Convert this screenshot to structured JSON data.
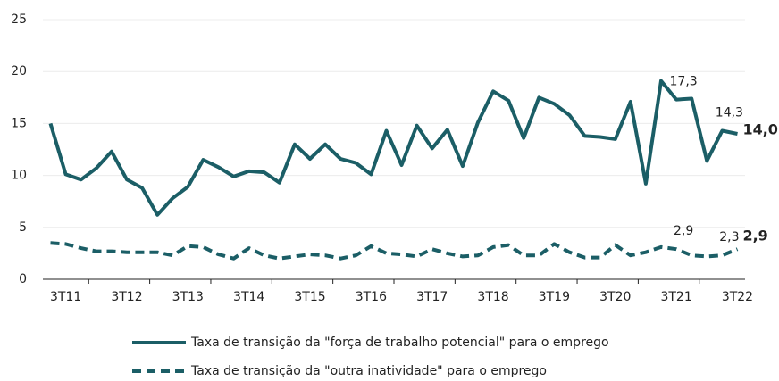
{
  "chart_data": {
    "type": "line",
    "categories": [
      null,
      "3T11",
      null,
      null,
      null,
      "3T12",
      null,
      null,
      null,
      "3T13",
      null,
      null,
      null,
      "3T14",
      null,
      null,
      null,
      "3T15",
      null,
      null,
      null,
      "3T16",
      null,
      null,
      null,
      "3T17",
      null,
      null,
      null,
      "3T18",
      null,
      null,
      null,
      "3T19",
      null,
      null,
      null,
      "3T20",
      null,
      null,
      null,
      "3T21",
      null,
      null,
      null,
      "3T22"
    ],
    "series": [
      {
        "name": "Taxa de transição da \"força de trabalho potencial\" para o emprego",
        "color": "#1b5e66",
        "dash": false,
        "values": [
          15.0,
          10.1,
          9.6,
          10.7,
          12.3,
          9.6,
          8.8,
          6.2,
          7.8,
          8.9,
          11.5,
          10.8,
          9.9,
          10.4,
          10.3,
          9.3,
          13.0,
          11.6,
          13.0,
          11.6,
          11.2,
          10.1,
          14.3,
          11.0,
          14.8,
          12.6,
          14.4,
          10.9,
          15.1,
          18.1,
          17.2,
          13.6,
          17.5,
          16.9,
          15.8,
          13.8,
          13.7,
          13.5,
          17.1,
          9.2,
          19.1,
          17.3,
          17.4,
          11.4,
          14.3,
          14.0
        ],
        "value_labels": [
          null,
          null,
          null,
          null,
          null,
          null,
          null,
          null,
          null,
          null,
          null,
          null,
          null,
          null,
          null,
          null,
          null,
          null,
          null,
          null,
          null,
          null,
          null,
          null,
          null,
          null,
          null,
          null,
          null,
          null,
          null,
          null,
          null,
          null,
          null,
          null,
          null,
          null,
          null,
          null,
          null,
          "17,3",
          null,
          null,
          "14,3",
          "14,0"
        ]
      },
      {
        "name": "Taxa de transição da \"outra inatividade\" para o emprego",
        "color": "#1b5e66",
        "dash": true,
        "values": [
          3.5,
          3.4,
          3.0,
          2.7,
          2.7,
          2.6,
          2.6,
          2.6,
          2.3,
          3.2,
          3.1,
          2.4,
          2.0,
          3.0,
          2.3,
          2.0,
          2.2,
          2.4,
          2.3,
          2.0,
          2.3,
          3.2,
          2.5,
          2.4,
          2.2,
          2.9,
          2.5,
          2.2,
          2.3,
          3.1,
          3.3,
          2.3,
          2.3,
          3.4,
          2.6,
          2.1,
          2.1,
          3.3,
          2.3,
          2.6,
          3.1,
          2.9,
          2.3,
          2.2,
          2.3,
          2.9
        ],
        "value_labels": [
          null,
          null,
          null,
          null,
          null,
          null,
          null,
          null,
          null,
          null,
          null,
          null,
          null,
          null,
          null,
          null,
          null,
          null,
          null,
          null,
          null,
          null,
          null,
          null,
          null,
          null,
          null,
          null,
          null,
          null,
          null,
          null,
          null,
          null,
          null,
          null,
          null,
          null,
          null,
          null,
          null,
          "2,9",
          null,
          null,
          "2,3",
          "2,9"
        ]
      }
    ],
    "ylim": [
      0,
      25
    ],
    "yticks": [
      0,
      5,
      10,
      15,
      20,
      25
    ],
    "grid": true,
    "legend": "bottom"
  }
}
